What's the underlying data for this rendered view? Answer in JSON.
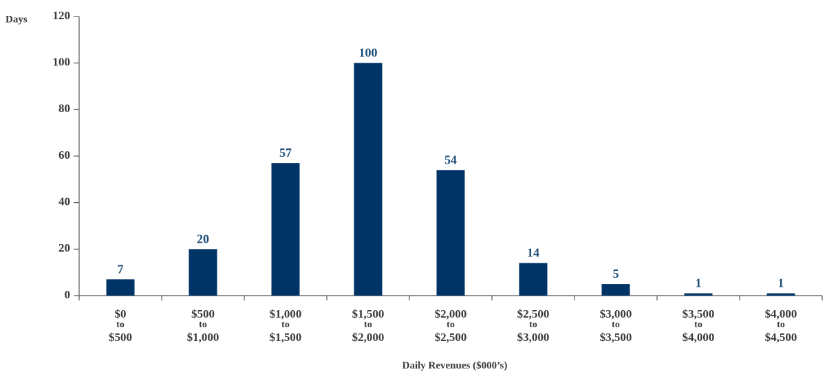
{
  "chart_data": {
    "type": "bar",
    "xlabel": "Daily Revenues ($000’s)",
    "ylabel": "Days",
    "ylim": [
      0,
      120
    ],
    "yticks": [
      0,
      20,
      40,
      60,
      80,
      100,
      120
    ],
    "grid": false,
    "categories": [
      [
        "$0",
        "to",
        "$500"
      ],
      [
        "$500",
        "to",
        "$1,000"
      ],
      [
        "$1,000",
        "to",
        "$1,500"
      ],
      [
        "$1,500",
        "to",
        "$2,000"
      ],
      [
        "$2,000",
        "to",
        "$2,500"
      ],
      [
        "$2,500",
        "to",
        "$3,000"
      ],
      [
        "$3,000",
        "to",
        "$3,500"
      ],
      [
        "$3,500",
        "to",
        "$4,000"
      ],
      [
        "$4,000",
        "to",
        "$4,500"
      ]
    ],
    "values": [
      7,
      20,
      57,
      100,
      54,
      14,
      5,
      1,
      1
    ],
    "bar_color": "#003366",
    "label_color": "#1f4e79"
  }
}
